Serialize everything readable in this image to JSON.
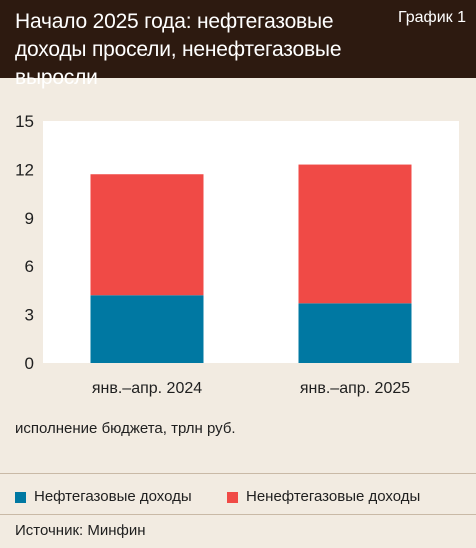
{
  "header": {
    "title": "Начало 2025 года: нефтегазовые доходы просели, ненефтегазовые выросли",
    "tag": "График 1"
  },
  "caption": "исполнение бюджета, трлн руб.",
  "source": "Источник: Минфин",
  "colors": {
    "oil_gas": "#0078a2",
    "non_oil_gas": "#f04a46",
    "plot_bg": "#ffffff",
    "header_bg": "#2d1a10"
  },
  "chart_data": {
    "type": "bar",
    "stacked": true,
    "categories": [
      "янв.–апр. 2024",
      "янв.–апр. 2025"
    ],
    "series": [
      {
        "name": "Нефтегазовые доходы",
        "values": [
          4.2,
          3.7
        ]
      },
      {
        "name": "Ненефтегазовые доходы",
        "values": [
          7.5,
          8.6
        ]
      }
    ],
    "ylim": [
      0,
      15
    ],
    "yticks": [
      "0",
      "3",
      "6",
      "9",
      "12",
      "15"
    ],
    "grid": false,
    "legend_position": "bottom"
  }
}
